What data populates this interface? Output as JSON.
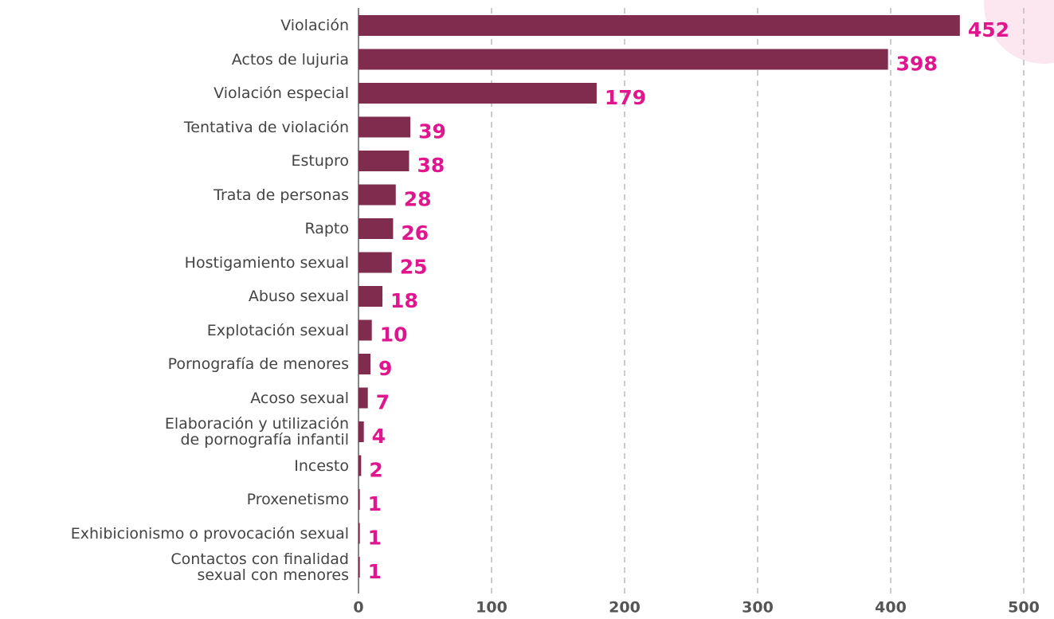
{
  "chart_data": {
    "type": "bar",
    "orientation": "horizontal",
    "categories": [
      "Violación",
      "Actos de lujuria",
      "Violación especial",
      "Tentativa de violación",
      "Estupro",
      "Trata de personas",
      "Rapto",
      "Hostigamiento sexual",
      "Abuso sexual",
      "Explotación sexual",
      "Pornografía de menores",
      "Acoso sexual",
      "Elaboración y utilización\nde pornografía infantil",
      "Incesto",
      "Proxenetismo",
      "Exhibicionismo o provocación sexual",
      "Contactos con finalidad\nsexual con menores"
    ],
    "values": [
      452,
      398,
      179,
      39,
      38,
      28,
      26,
      25,
      18,
      10,
      9,
      7,
      4,
      2,
      1,
      1,
      1
    ],
    "color": "#7f2c4e",
    "label_color": "#e0168f",
    "xlim": [
      0,
      500
    ],
    "xticks": [
      0,
      100,
      200,
      300,
      400,
      500
    ],
    "grid": true
  }
}
